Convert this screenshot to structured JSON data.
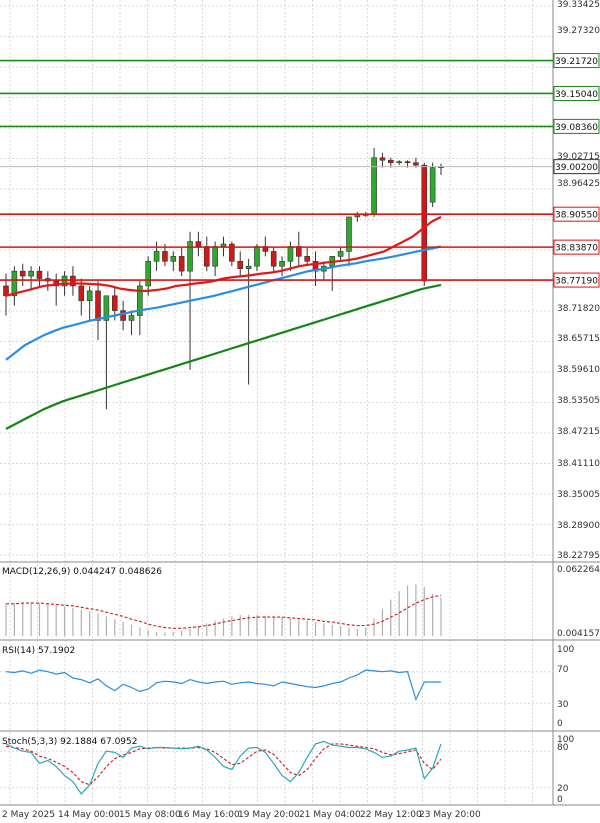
{
  "chart_data": {
    "type": "candlestick",
    "main_price_ticks": [
      "39.27320",
      "38.96425",
      "38.71820",
      "38.65715",
      "38.59610",
      "38.53505",
      "38.47215",
      "38.41110",
      "38.35005",
      "38.28900",
      "38.22795"
    ],
    "main_price_top_label": "39.33425",
    "last_price": "39.00200",
    "last_price_ref": "39.02715",
    "x_labels": [
      "2 May 2025",
      "14 May 00:00",
      "15 May 08:00",
      "16 May 16:00",
      "19 May 20:00",
      "21 May 04:00",
      "22 May 12:00",
      "23 May 20:00"
    ],
    "horizontal_lines": [
      {
        "label": "39.21720",
        "value": 39.2172,
        "color": "#1a8c1a"
      },
      {
        "label": "39.15040",
        "value": 39.1504,
        "color": "#1a8c1a"
      },
      {
        "label": "39.08360",
        "value": 39.0836,
        "color": "#1a8c1a"
      },
      {
        "label": "38.90550",
        "value": 38.9055,
        "color": "#e01010"
      },
      {
        "label": "38.83870",
        "value": 38.8387,
        "color": "#e01010"
      },
      {
        "label": "38.77190",
        "value": 38.7719,
        "color": "#e01010"
      }
    ],
    "candles": [
      [
        38.76,
        38.785,
        38.7,
        38.74
      ],
      [
        38.74,
        38.8,
        38.72,
        38.79
      ],
      [
        38.79,
        38.805,
        38.76,
        38.78
      ],
      [
        38.78,
        38.8,
        38.755,
        38.79
      ],
      [
        38.79,
        38.8,
        38.76,
        38.775
      ],
      [
        38.775,
        38.79,
        38.75,
        38.77
      ],
      [
        38.77,
        38.785,
        38.72,
        38.76
      ],
      [
        38.76,
        38.79,
        38.74,
        38.78
      ],
      [
        38.78,
        38.8,
        38.74,
        38.76
      ],
      [
        38.76,
        38.775,
        38.7,
        38.73
      ],
      [
        38.73,
        38.76,
        38.69,
        38.75
      ],
      [
        38.75,
        38.77,
        38.65,
        38.69
      ],
      [
        38.69,
        38.74,
        38.51,
        38.74
      ],
      [
        38.74,
        38.76,
        38.69,
        38.71
      ],
      [
        38.71,
        38.73,
        38.67,
        38.69
      ],
      [
        38.69,
        38.71,
        38.66,
        38.7
      ],
      [
        38.7,
        38.77,
        38.66,
        38.76
      ],
      [
        38.76,
        38.82,
        38.74,
        38.81
      ],
      [
        38.81,
        38.85,
        38.79,
        38.83
      ],
      [
        38.83,
        38.845,
        38.8,
        38.81
      ],
      [
        38.81,
        38.83,
        38.79,
        38.82
      ],
      [
        38.82,
        38.84,
        38.78,
        38.79
      ],
      [
        38.79,
        38.87,
        38.59,
        38.85
      ],
      [
        38.85,
        38.87,
        38.82,
        38.84
      ],
      [
        38.84,
        38.86,
        38.79,
        38.8
      ],
      [
        38.8,
        38.85,
        38.78,
        38.84
      ],
      [
        38.84,
        38.86,
        38.82,
        38.845
      ],
      [
        38.845,
        38.85,
        38.8,
        38.81
      ],
      [
        38.81,
        38.83,
        38.78,
        38.795
      ],
      [
        38.795,
        38.815,
        38.56,
        38.8
      ],
      [
        38.8,
        38.845,
        38.79,
        38.84
      ],
      [
        38.84,
        38.86,
        38.82,
        38.83
      ],
      [
        38.83,
        38.84,
        38.79,
        38.8
      ],
      [
        38.8,
        38.82,
        38.78,
        38.81
      ],
      [
        38.81,
        38.85,
        38.79,
        38.84
      ],
      [
        38.84,
        38.87,
        38.8,
        38.82
      ],
      [
        38.82,
        38.84,
        38.8,
        38.81
      ],
      [
        38.81,
        38.83,
        38.76,
        38.79
      ],
      [
        38.79,
        38.81,
        38.77,
        38.8
      ],
      [
        38.8,
        38.82,
        38.75,
        38.82
      ],
      [
        38.82,
        38.84,
        38.81,
        38.83
      ],
      [
        38.83,
        38.9,
        38.8,
        38.9
      ],
      [
        38.9,
        38.91,
        38.89,
        38.905
      ],
      [
        38.905,
        38.91,
        38.9,
        38.905
      ],
      [
        38.905,
        39.04,
        38.9,
        39.02
      ],
      [
        39.02,
        39.03,
        39.0,
        39.015
      ],
      [
        39.015,
        39.02,
        39.0,
        39.01
      ],
      [
        39.01,
        39.015,
        39.005,
        39.012
      ],
      [
        39.012,
        39.015,
        39.0,
        39.01
      ],
      [
        39.01,
        39.02,
        39.0,
        39.005
      ],
      [
        39.005,
        39.01,
        38.76,
        38.77
      ],
      [
        38.93,
        39.01,
        38.92,
        39.0
      ],
      [
        39.0,
        39.008,
        38.985,
        39.002
      ]
    ],
    "ma_red": [
      38.74,
      38.745,
      38.75,
      38.755,
      38.76,
      38.762,
      38.764,
      38.765,
      38.765,
      38.764,
      38.763,
      38.76,
      38.755,
      38.752,
      38.75,
      38.75,
      38.752,
      38.755,
      38.76,
      38.762,
      38.765,
      38.767,
      38.77,
      38.775,
      38.778,
      38.78,
      38.782,
      38.785,
      38.787,
      38.79,
      38.795,
      38.8,
      38.803,
      38.805,
      38.808,
      38.81,
      38.812,
      38.815,
      38.82,
      38.825,
      38.83,
      38.84,
      38.85,
      38.86,
      38.875,
      38.89,
      38.9
    ],
    "ma_blue": [
      38.61,
      38.625,
      38.64,
      38.65,
      38.66,
      38.668,
      38.675,
      38.68,
      38.685,
      38.69,
      38.694,
      38.698,
      38.702,
      38.706,
      38.71,
      38.713,
      38.716,
      38.72,
      38.724,
      38.728,
      38.732,
      38.736,
      38.74,
      38.745,
      38.75,
      38.755,
      38.76,
      38.765,
      38.77,
      38.775,
      38.78,
      38.785,
      38.79,
      38.793,
      38.796,
      38.8,
      38.803,
      38.806,
      38.81,
      38.813,
      38.816,
      38.82,
      38.824,
      38.828,
      38.832,
      38.836,
      38.84
    ],
    "ma_green": [
      38.47,
      38.48,
      38.49,
      38.5,
      38.51,
      38.518,
      38.526,
      38.532,
      38.538,
      38.544,
      38.55,
      38.556,
      38.562,
      38.568,
      38.574,
      38.58,
      38.586,
      38.592,
      38.598,
      38.604,
      38.61,
      38.616,
      38.622,
      38.628,
      38.634,
      38.64,
      38.646,
      38.652,
      38.658,
      38.664,
      38.67,
      38.676,
      38.682,
      38.688,
      38.694,
      38.7,
      38.706,
      38.712,
      38.718,
      38.724,
      38.73,
      38.736,
      38.742,
      38.748,
      38.754,
      38.758,
      38.762
    ],
    "macd": {
      "label": "MACD(12,26,9) 0.044247 0.048626",
      "ticks": [
        "0.062264",
        "0.004157"
      ],
      "histogram": [
        0.46,
        0.47,
        0.48,
        0.48,
        0.47,
        0.46,
        0.44,
        0.42,
        0.4,
        0.38,
        0.35,
        0.32,
        0.28,
        0.24,
        0.2,
        0.16,
        0.12,
        0.08,
        0.06,
        0.05,
        0.06,
        0.08,
        0.1,
        0.14,
        0.18,
        0.22,
        0.25,
        0.28,
        0.3,
        0.3,
        0.3,
        0.29,
        0.28,
        0.27,
        0.25,
        0.24,
        0.22,
        0.2,
        0.18,
        0.16,
        0.14,
        0.12,
        0.1,
        0.12,
        0.25,
        0.38,
        0.52,
        0.64,
        0.72,
        0.74,
        0.7,
        0.6,
        0.55
      ],
      "signal": [
        0.46,
        0.46,
        0.47,
        0.47,
        0.47,
        0.46,
        0.45,
        0.44,
        0.43,
        0.41,
        0.39,
        0.37,
        0.34,
        0.31,
        0.28,
        0.24,
        0.21,
        0.17,
        0.14,
        0.12,
        0.11,
        0.11,
        0.12,
        0.13,
        0.15,
        0.17,
        0.2,
        0.22,
        0.24,
        0.26,
        0.27,
        0.27,
        0.27,
        0.27,
        0.26,
        0.25,
        0.24,
        0.23,
        0.21,
        0.2,
        0.18,
        0.16,
        0.15,
        0.15,
        0.17,
        0.21,
        0.27,
        0.33,
        0.4,
        0.47,
        0.52,
        0.56,
        0.58
      ]
    },
    "rsi": {
      "label": "RSI(14) 57.1902",
      "ticks": [
        "100",
        "70",
        "30",
        "0"
      ],
      "values": [
        70,
        69,
        71,
        68,
        72,
        70,
        67,
        69,
        62,
        60,
        56,
        61,
        52,
        46,
        54,
        50,
        45,
        48,
        56,
        58,
        57,
        55,
        60,
        57,
        55,
        57,
        58,
        54,
        56,
        57,
        55,
        54,
        52,
        57,
        55,
        53,
        51,
        50,
        52,
        55,
        57,
        62,
        66,
        72,
        71,
        70,
        71,
        69,
        70,
        35,
        57,
        57,
        57
      ]
    },
    "stoch": {
      "label": "Stoch(5,3,3) 92.1884 67.0952",
      "ticks": [
        "100",
        "80",
        "20",
        "0"
      ],
      "k": [
        92,
        85,
        80,
        78,
        60,
        65,
        55,
        40,
        30,
        10,
        25,
        60,
        80,
        78,
        70,
        85,
        88,
        84,
        86,
        86,
        85,
        84,
        85,
        88,
        82,
        70,
        55,
        50,
        72,
        85,
        86,
        78,
        60,
        40,
        30,
        45,
        70,
        92,
        96,
        90,
        88,
        86,
        86,
        84,
        78,
        70,
        72,
        80,
        82,
        85,
        35,
        52,
        92
      ],
      "d": [
        88,
        86,
        84,
        80,
        72,
        68,
        62,
        55,
        45,
        30,
        25,
        38,
        55,
        68,
        74,
        78,
        84,
        85,
        86,
        85,
        85,
        85,
        85,
        86,
        84,
        78,
        68,
        58,
        60,
        70,
        80,
        82,
        75,
        60,
        45,
        40,
        50,
        68,
        84,
        92,
        92,
        90,
        88,
        86,
        84,
        78,
        74,
        76,
        79,
        82,
        60,
        50,
        67
      ]
    }
  }
}
